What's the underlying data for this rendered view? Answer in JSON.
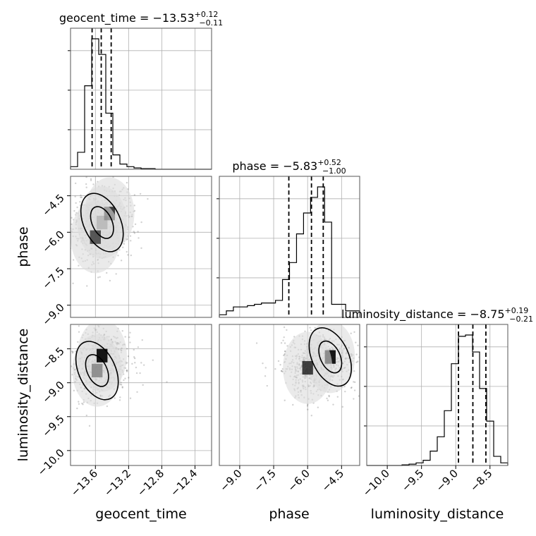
{
  "figure": {
    "background": "#ffffff",
    "ink_color": "#000000",
    "grid_color": "#b0b0b0"
  },
  "chart_data": [
    {
      "type": "histogram",
      "panel": "geocent_time-marginal",
      "parameter": "geocent_time",
      "title": {
        "name": "geocent_time",
        "median": "−13.53",
        "plus": "+0.12",
        "minus": "−0.11"
      },
      "xlim": [
        -13.9,
        -12.2
      ],
      "quantiles": [
        -13.64,
        -13.53,
        -13.41
      ],
      "bin_edges": [
        -13.9,
        -13.815,
        -13.73,
        -13.645,
        -13.56,
        -13.475,
        -13.39,
        -13.305,
        -13.22,
        -13.135,
        -13.05,
        -12.965,
        -12.88,
        -12.795,
        -12.71,
        -12.625,
        -12.54,
        -12.455,
        -12.37,
        -12.285,
        -12.2
      ],
      "counts": [
        0.02,
        0.13,
        0.64,
        1.0,
        0.88,
        0.43,
        0.11,
        0.04,
        0.02,
        0.01,
        0.005,
        0.005,
        0,
        0,
        0,
        0,
        0,
        0,
        0,
        0
      ],
      "grid": true
    },
    {
      "type": "histogram",
      "panel": "phase-marginal",
      "parameter": "phase",
      "title": {
        "name": "phase",
        "median": "−5.83",
        "plus": "+0.52",
        "minus": "−1.00"
      },
      "xlim": [
        -9.9,
        -3.7
      ],
      "quantiles": [
        -6.83,
        -5.83,
        -5.31
      ],
      "bin_edges": [
        -9.9,
        -9.59,
        -9.28,
        -8.97,
        -8.66,
        -8.35,
        -8.04,
        -7.73,
        -7.42,
        -7.11,
        -6.8,
        -6.49,
        -6.18,
        -5.87,
        -5.56,
        -5.25,
        -4.94,
        -4.63,
        -4.32,
        -4.01,
        -3.7
      ],
      "counts": [
        0.02,
        0.05,
        0.08,
        0.08,
        0.09,
        0.1,
        0.11,
        0.11,
        0.13,
        0.29,
        0.42,
        0.64,
        0.8,
        0.92,
        1.0,
        0.73,
        0.1,
        0.1,
        0.05,
        0.05
      ],
      "grid": true
    },
    {
      "type": "histogram",
      "panel": "luminosity_distance-marginal",
      "parameter": "luminosity_distance",
      "title": {
        "name": "luminosity_distance",
        "median": "−8.75",
        "plus": "+0.19",
        "minus": "−0.21"
      },
      "xlim": [
        -10.3,
        -8.24
      ],
      "quantiles": [
        -8.96,
        -8.75,
        -8.56
      ],
      "bin_edges": [
        -10.3,
        -10.197,
        -10.094,
        -9.991,
        -9.888,
        -9.785,
        -9.682,
        -9.579,
        -9.476,
        -9.373,
        -9.27,
        -9.167,
        -9.064,
        -8.961,
        -8.858,
        -8.755,
        -8.652,
        -8.549,
        -8.446,
        -8.343,
        -8.24
      ],
      "counts": [
        0,
        0,
        0,
        0,
        0,
        0.005,
        0.01,
        0.02,
        0.04,
        0.11,
        0.22,
        0.42,
        0.78,
        0.99,
        1.0,
        0.87,
        0.59,
        0.34,
        0.07,
        0.02
      ],
      "grid": true
    },
    {
      "type": "heatmap",
      "panel": "phase-vs-geocent_time",
      "x_parameter": "geocent_time",
      "y_parameter": "phase",
      "xlim": [
        -13.9,
        -12.2
      ],
      "ylim": [
        -9.5,
        -3.7
      ],
      "contour_levels": [
        "0.39",
        "0.86"
      ],
      "density_peaks": [
        {
          "x": -13.52,
          "y": -5.6,
          "weight": 1.0
        },
        {
          "x": -13.43,
          "y": -5.23,
          "weight": 0.6
        },
        {
          "x": -13.6,
          "y": -6.2,
          "weight": 0.35
        }
      ],
      "grid": true
    },
    {
      "type": "heatmap",
      "panel": "luminosity_distance-vs-geocent_time",
      "x_parameter": "geocent_time",
      "y_parameter": "luminosity_distance",
      "xlim": [
        -13.9,
        -12.2
      ],
      "ylim": [
        -10.22,
        -8.14
      ],
      "contour_levels": [
        "0.39",
        "0.86"
      ],
      "density_peaks": [
        {
          "x": -13.58,
          "y": -8.82,
          "weight": 0.9
        },
        {
          "x": -13.52,
          "y": -8.6,
          "weight": 1.0
        }
      ],
      "grid": true
    },
    {
      "type": "heatmap",
      "panel": "luminosity_distance-vs-phase",
      "x_parameter": "phase",
      "y_parameter": "luminosity_distance",
      "xlim": [
        -9.9,
        -3.7
      ],
      "ylim": [
        -10.22,
        -8.14
      ],
      "contour_levels": [
        "0.39",
        "0.86"
      ],
      "density_peaks": [
        {
          "x": -5.0,
          "y": -8.62,
          "weight": 1.0
        },
        {
          "x": -6.0,
          "y": -8.78,
          "weight": 0.6
        }
      ],
      "grid": true
    }
  ],
  "axes": {
    "xlabels": [
      "geocent_time",
      "phase",
      "luminosity_distance"
    ],
    "ylabels": [
      "phase",
      "luminosity_distance"
    ],
    "bottom_ticks": [
      [
        "−13.6",
        "−13.2",
        "−12.8",
        "−12.4"
      ],
      [
        "−9.0",
        "−7.5",
        "−6.0",
        "−4.5"
      ],
      [
        "−10.0",
        "−9.5",
        "−9.0",
        "−8.5"
      ]
    ],
    "left_ticks": [
      [
        "−4.5",
        "−6.0",
        "−7.5",
        "−9.0"
      ],
      [
        "−8.5",
        "−9.0",
        "−9.5",
        "−10.0"
      ]
    ]
  }
}
